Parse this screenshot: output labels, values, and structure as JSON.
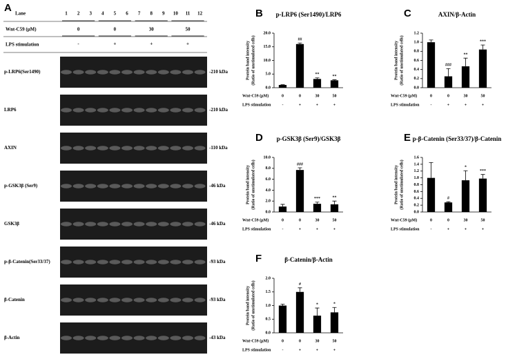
{
  "panel_labels": [
    "A",
    "B",
    "C",
    "D",
    "E",
    "F"
  ],
  "blot": {
    "lane_header": "Lane",
    "lanes": [
      "1",
      "2",
      "3",
      "4",
      "5",
      "6",
      "7",
      "8",
      "9",
      "10",
      "11",
      "12"
    ],
    "treatment_label": "Wnt-C59 (μM)",
    "treatment_groups": [
      "0",
      "0",
      "30",
      "50"
    ],
    "stimulation_label": "LPS stimulation",
    "stimulation_groups": [
      "-",
      "+",
      "+",
      "+"
    ],
    "rows": [
      {
        "label": "p-LRP6(Ser1490)",
        "size": "-210 kDa"
      },
      {
        "label": "LRP6",
        "size": "-210 kDa"
      },
      {
        "label": "AXIN",
        "size": "-110 kDa"
      },
      {
        "label": "p-GSK3β (Ser9)",
        "size": "-46 kDa"
      },
      {
        "label": "GSK3β",
        "size": "-46 kDa"
      },
      {
        "label": "p-β-Catenin(Ser33/37)",
        "size": "-93 kDa"
      },
      {
        "label": "β-Catenin",
        "size": "-93 kDa"
      },
      {
        "label": "β-Actin",
        "size": "-43 kDa"
      }
    ]
  },
  "chart_data": [
    {
      "type": "bar",
      "title": "p-LRP6 (Ser1490)/LRP6",
      "ylabel": [
        "Protein band intensity",
        "(Ratio of unstimulated  cells)"
      ],
      "categories": [
        "0",
        "0",
        "30",
        "50"
      ],
      "category_label": "Wnt-C59 (μM)",
      "categories_2": [
        "-",
        "+",
        "+",
        "+"
      ],
      "category_label_2": "LPS stimulation",
      "values": [
        1.0,
        16.0,
        3.2,
        2.7
      ],
      "errors": [
        0.1,
        0.4,
        0.4,
        0.2
      ],
      "annotations": [
        null,
        "##",
        "**",
        "**"
      ],
      "color": "#000000",
      "ylim": [
        0,
        20
      ],
      "yticks": [
        {
          "value": 0,
          "label": "0.0"
        },
        {
          "value": 5,
          "label": "5.0"
        },
        {
          "value": 10,
          "label": "10.0"
        },
        {
          "value": 15,
          "label": "15.0"
        },
        {
          "value": 20,
          "label": "20.0"
        }
      ]
    },
    {
      "type": "bar",
      "title": "AXIN/β-Actin",
      "ylabel": [
        "Protein band intensity",
        "(Ratio of unstimulated  cells)"
      ],
      "categories": [
        "0",
        "0",
        "30",
        "50"
      ],
      "category_label": "Wnt-C59 (μM)",
      "categories_2": [
        "-",
        "+",
        "+",
        "+"
      ],
      "category_label_2": "LPS stimulation",
      "values": [
        1.0,
        0.25,
        0.47,
        0.84
      ],
      "errors": [
        0.05,
        0.17,
        0.18,
        0.1
      ],
      "annotations": [
        null,
        "###",
        "**",
        "***"
      ],
      "color": "#000000",
      "ylim": [
        0,
        1.2
      ],
      "yticks": [
        {
          "value": 0,
          "label": "0.0"
        },
        0.2,
        0.4,
        0.6,
        0.8,
        {
          "value": 1,
          "label": "1.0"
        },
        1.2
      ]
    },
    {
      "type": "bar",
      "title": "p-GSK3β (Ser9)/GSK3β",
      "ylabel": [
        "Protein band intensity",
        "(Ratio of unstimulated  cells)"
      ],
      "categories": [
        "0",
        "0",
        "30",
        "50"
      ],
      "category_label": "Wnt-C59 (μM)",
      "categories_2": [
        "-",
        "+",
        "+",
        "+"
      ],
      "category_label_2": "LPS stimulation",
      "values": [
        1.0,
        7.7,
        1.5,
        1.4
      ],
      "errors": [
        0.4,
        0.4,
        0.3,
        0.6
      ],
      "annotations": [
        null,
        "###",
        "***",
        "**"
      ],
      "color": "#000000",
      "ylim": [
        0,
        10
      ],
      "yticks": [
        {
          "value": 0,
          "label": "0.0"
        },
        {
          "value": 2,
          "label": "2.0"
        },
        {
          "value": 4,
          "label": "4.0"
        },
        {
          "value": 6,
          "label": "6.0"
        },
        {
          "value": 8,
          "label": "8.0"
        },
        {
          "value": 10,
          "label": "10.0"
        }
      ]
    },
    {
      "type": "bar",
      "title": "p-β-Catenin (Ser33/37)/β-Catenin",
      "ylabel": [
        "Protein band intensity",
        "(Ratio of unstimulated  cells)"
      ],
      "categories": [
        "0",
        "0",
        "30",
        "50"
      ],
      "category_label": "Wnt-C59 (μM)",
      "categories_2": [
        "-",
        "+",
        "+",
        "+"
      ],
      "category_label_2": "LPS stimulation",
      "values": [
        1.0,
        0.28,
        0.93,
        0.98
      ],
      "errors": [
        0.45,
        0.02,
        0.28,
        0.12
      ],
      "annotations": [
        null,
        "#",
        "*",
        "***"
      ],
      "color": "#000000",
      "ylim": [
        0,
        1.6
      ],
      "yticks": [
        {
          "value": 0,
          "label": "0.0"
        },
        0.2,
        0.4,
        0.6,
        0.8,
        {
          "value": 1,
          "label": "1.0"
        },
        1.2,
        1.4,
        1.6
      ]
    },
    {
      "type": "bar",
      "title": "β-Catenin/β-Actin",
      "ylabel": [
        "Protein band intensity",
        "(Ratio of unstimulated  cells)"
      ],
      "categories": [
        "0",
        "0",
        "30",
        "50"
      ],
      "category_label": "Wnt-C59 (μM)",
      "categories_2": [
        "-",
        "+",
        "+",
        "+"
      ],
      "category_label_2": "LPS stimulation",
      "values": [
        1.0,
        1.5,
        0.63,
        0.75
      ],
      "errors": [
        0.05,
        0.15,
        0.28,
        0.18
      ],
      "annotations": [
        null,
        "#",
        "*",
        "*"
      ],
      "color": "#000000",
      "ylim": [
        0,
        2
      ],
      "yticks": [
        {
          "value": 0,
          "label": "0.0"
        },
        0.5,
        {
          "value": 1,
          "label": "1.0"
        },
        1.5,
        {
          "value": 2,
          "label": "2.0"
        }
      ]
    }
  ]
}
